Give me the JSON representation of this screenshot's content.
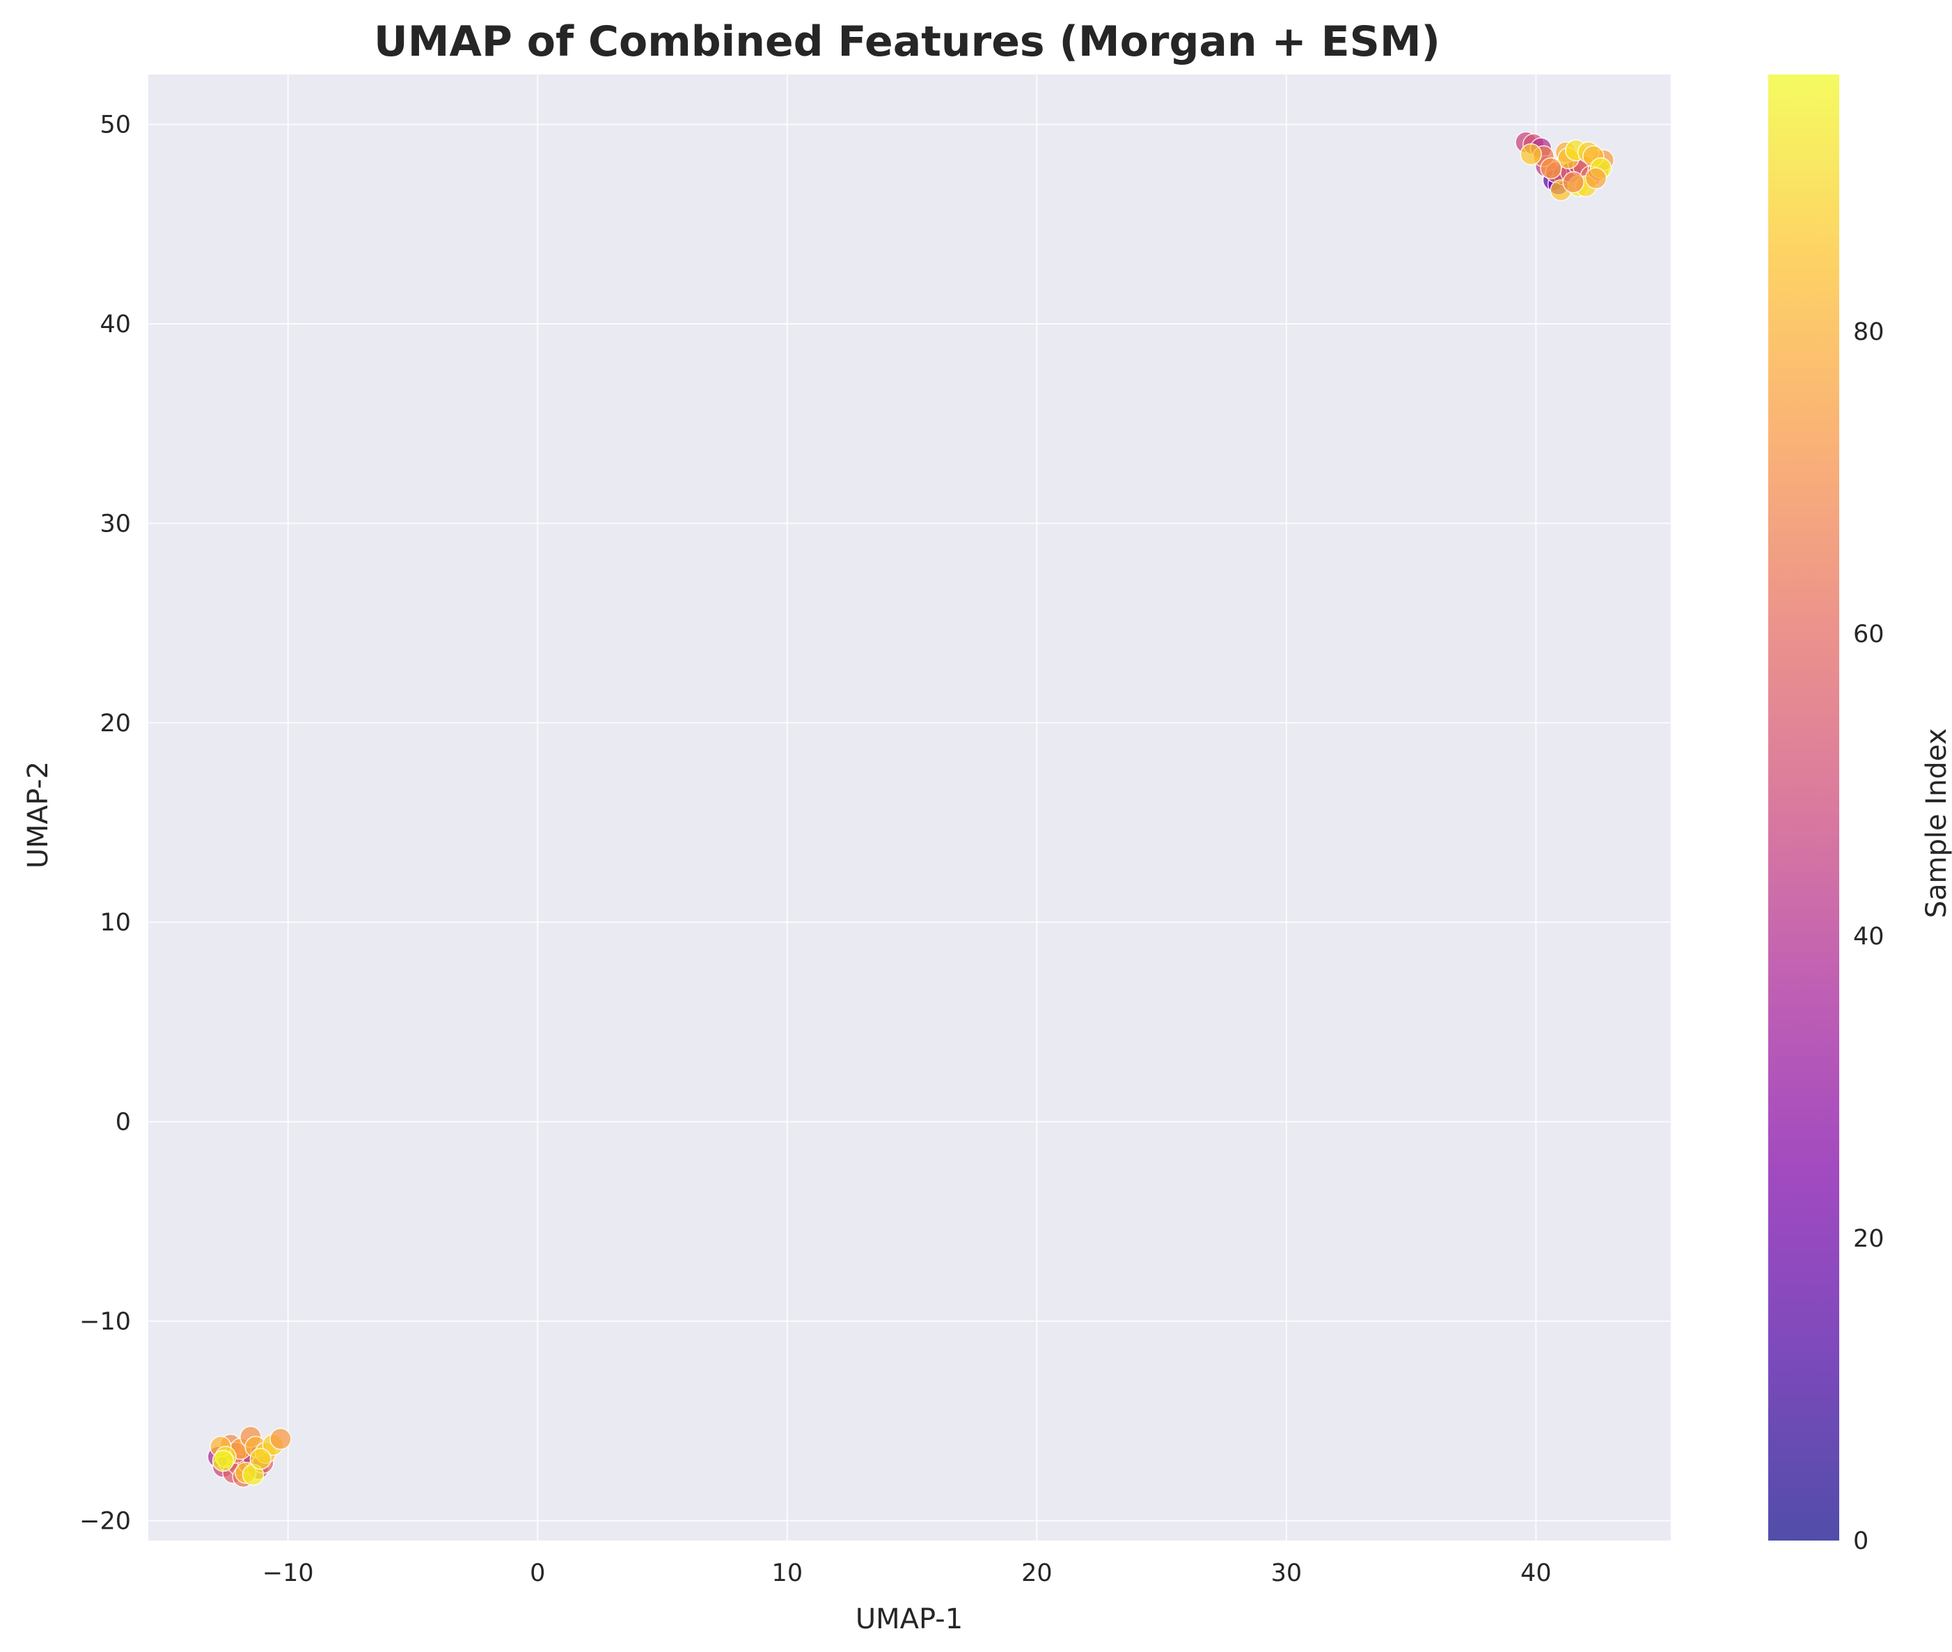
{
  "chart_data": {
    "type": "scatter",
    "title": "UMAP of Combined Features (Morgan + ESM)",
    "xlabel": "UMAP-1",
    "ylabel": "UMAP-2",
    "xlim": [
      -15.6,
      45.4
    ],
    "ylim": [
      -21,
      52.5
    ],
    "xticks": [
      -10,
      0,
      10,
      20,
      30,
      40
    ],
    "yticks": [
      -20,
      -10,
      0,
      10,
      20,
      30,
      40,
      50
    ],
    "xtick_labels": [
      "−10",
      "0",
      "10",
      "20",
      "30",
      "40"
    ],
    "ytick_labels": [
      "−20",
      "−10",
      "0",
      "10",
      "20",
      "30",
      "40",
      "50"
    ],
    "grid": true,
    "colorbar": {
      "label": "Sample Index",
      "range": [
        0,
        97
      ],
      "ticks": [
        0,
        20,
        40,
        60,
        80
      ],
      "tick_labels": [
        "0",
        "20",
        "40",
        "60",
        "80"
      ],
      "colormap": "plasma"
    },
    "colors": {
      "plot_background": "#eaeaf2",
      "grid": "#ffffff",
      "marker_edge": "#ffffff"
    },
    "points": [
      {
        "x": 39.6,
        "y": 49.1,
        "c": 48
      },
      {
        "x": 39.9,
        "y": 49.0,
        "c": 52
      },
      {
        "x": 40.2,
        "y": 48.8,
        "c": 40
      },
      {
        "x": 40.4,
        "y": 47.9,
        "c": 45
      },
      {
        "x": 40.7,
        "y": 47.2,
        "c": 18
      },
      {
        "x": 40.9,
        "y": 47.0,
        "c": 22
      },
      {
        "x": 41.1,
        "y": 47.5,
        "c": 30
      },
      {
        "x": 40.8,
        "y": 47.6,
        "c": 60
      },
      {
        "x": 41.4,
        "y": 47.6,
        "c": 55
      },
      {
        "x": 41.7,
        "y": 48.0,
        "c": 50
      },
      {
        "x": 41.9,
        "y": 47.9,
        "c": 58
      },
      {
        "x": 42.2,
        "y": 47.4,
        "c": 62
      },
      {
        "x": 42.5,
        "y": 47.7,
        "c": 68
      },
      {
        "x": 42.7,
        "y": 48.2,
        "c": 75
      },
      {
        "x": 40.3,
        "y": 48.4,
        "c": 66
      },
      {
        "x": 39.8,
        "y": 48.5,
        "c": 86
      },
      {
        "x": 41.2,
        "y": 48.6,
        "c": 80
      },
      {
        "x": 41.3,
        "y": 48.3,
        "c": 84
      },
      {
        "x": 41.6,
        "y": 48.7,
        "c": 92
      },
      {
        "x": 42.1,
        "y": 48.6,
        "c": 88
      },
      {
        "x": 42.3,
        "y": 48.4,
        "c": 82
      },
      {
        "x": 42.6,
        "y": 47.8,
        "c": 95
      },
      {
        "x": 41.0,
        "y": 46.7,
        "c": 85
      },
      {
        "x": 41.7,
        "y": 46.9,
        "c": 94
      },
      {
        "x": 42.0,
        "y": 46.9,
        "c": 90
      },
      {
        "x": 42.4,
        "y": 47.3,
        "c": 78
      },
      {
        "x": 41.5,
        "y": 47.1,
        "c": 70
      },
      {
        "x": 40.6,
        "y": 47.8,
        "c": 74
      },
      {
        "x": -12.8,
        "y": -16.8,
        "c": 38
      },
      {
        "x": -12.6,
        "y": -17.3,
        "c": 48
      },
      {
        "x": -12.4,
        "y": -17.0,
        "c": 42
      },
      {
        "x": -12.2,
        "y": -17.6,
        "c": 56
      },
      {
        "x": -12.0,
        "y": -17.2,
        "c": 60
      },
      {
        "x": -11.8,
        "y": -17.8,
        "c": 64
      },
      {
        "x": -11.6,
        "y": -17.1,
        "c": 52
      },
      {
        "x": -11.4,
        "y": -16.8,
        "c": 46
      },
      {
        "x": -11.2,
        "y": -17.4,
        "c": 50
      },
      {
        "x": -11.0,
        "y": -17.1,
        "c": 58
      },
      {
        "x": -12.3,
        "y": -16.2,
        "c": 70
      },
      {
        "x": -12.1,
        "y": -16.6,
        "c": 66
      },
      {
        "x": -11.9,
        "y": -16.4,
        "c": 76
      },
      {
        "x": -11.5,
        "y": -15.8,
        "c": 72
      },
      {
        "x": -11.3,
        "y": -16.3,
        "c": 80
      },
      {
        "x": -10.9,
        "y": -16.6,
        "c": 84
      },
      {
        "x": -10.6,
        "y": -16.2,
        "c": 88
      },
      {
        "x": -10.3,
        "y": -15.9,
        "c": 74
      },
      {
        "x": -12.7,
        "y": -16.3,
        "c": 82
      },
      {
        "x": -12.5,
        "y": -16.8,
        "c": 92
      },
      {
        "x": -12.6,
        "y": -17.0,
        "c": 96
      },
      {
        "x": -11.7,
        "y": -17.6,
        "c": 86
      },
      {
        "x": -11.4,
        "y": -17.7,
        "c": 95
      },
      {
        "x": -11.1,
        "y": -16.9,
        "c": 90
      }
    ]
  }
}
